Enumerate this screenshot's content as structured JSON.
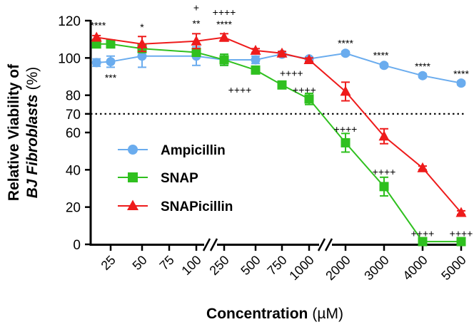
{
  "chart_data": {
    "type": "line",
    "title": "",
    "ylabel_line1": "Relative Viability of",
    "ylabel_italic": "BJ Fibroblasts",
    "ylabel_unit": "(%)",
    "xlabel": "Concentration",
    "xlabel_unit": "(µM)",
    "ylim": [
      0,
      120
    ],
    "yticks": [
      0,
      20,
      40,
      60,
      70,
      80,
      100,
      120
    ],
    "reference_line": 70,
    "categories": [
      "25",
      "50",
      "75",
      "100",
      "250",
      "500",
      "750",
      "1000",
      "2000",
      "3000",
      "4000",
      "5000"
    ],
    "series": [
      {
        "name": "Ampicillin",
        "color": "#6aacee",
        "marker": "circle",
        "points": [
          {
            "cat": "25",
            "offset": -0.45,
            "y": 97.5,
            "err": 2
          },
          {
            "cat": "25",
            "offset": 0,
            "y": 98,
            "err": 3
          },
          {
            "cat": "50",
            "offset": 0,
            "y": 101,
            "err": 6
          },
          {
            "cat": "100",
            "offset": 0,
            "y": 101,
            "err": 5
          },
          {
            "cat": "250",
            "offset": 0,
            "y": 99,
            "err": 3
          },
          {
            "cat": "500",
            "offset": 0,
            "y": 99,
            "err": 2
          },
          {
            "cat": "750",
            "offset": 0,
            "y": 102,
            "err": 1
          },
          {
            "cat": "1000",
            "offset": 0,
            "y": 99.5,
            "err": 1
          },
          {
            "cat": "2000",
            "offset": 0,
            "y": 102.5,
            "err": 1
          },
          {
            "cat": "3000",
            "offset": 0,
            "y": 96,
            "err": 1
          },
          {
            "cat": "4000",
            "offset": 0,
            "y": 90.5,
            "err": 1
          },
          {
            "cat": "5000",
            "offset": 0,
            "y": 86.5,
            "err": 1
          }
        ]
      },
      {
        "name": "SNAP",
        "color": "#2fc01f",
        "marker": "square",
        "points": [
          {
            "cat": "25",
            "offset": -0.45,
            "y": 107.5,
            "err": 1
          },
          {
            "cat": "25",
            "offset": 0,
            "y": 107.5,
            "err": 1
          },
          {
            "cat": "50",
            "offset": 0,
            "y": 105,
            "err": 1
          },
          {
            "cat": "100",
            "offset": 0,
            "y": 103,
            "err": 2
          },
          {
            "cat": "250",
            "offset": 0,
            "y": 99,
            "err": 3
          },
          {
            "cat": "500",
            "offset": 0,
            "y": 93.5,
            "err": 1
          },
          {
            "cat": "750",
            "offset": 0,
            "y": 85.5,
            "err": 1
          },
          {
            "cat": "1000",
            "offset": 0,
            "y": 78,
            "err": 3
          },
          {
            "cat": "2000",
            "offset": 0,
            "y": 54.5,
            "err": 5
          },
          {
            "cat": "3000",
            "offset": 0,
            "y": 31,
            "err": 5
          },
          {
            "cat": "4000",
            "offset": 0,
            "y": 1.5,
            "err": 1
          },
          {
            "cat": "5000",
            "offset": 0,
            "y": 1.5,
            "err": 1
          }
        ]
      },
      {
        "name": "SNAPicillin",
        "color": "#ee1b1b",
        "marker": "triangle",
        "points": [
          {
            "cat": "25",
            "offset": -0.45,
            "y": 111,
            "err": 1
          },
          {
            "cat": "50",
            "offset": 0,
            "y": 107.5,
            "err": 4
          },
          {
            "cat": "100",
            "offset": 0,
            "y": 109,
            "err": 4
          },
          {
            "cat": "250",
            "offset": 0,
            "y": 111,
            "err": 2
          },
          {
            "cat": "500",
            "offset": 0,
            "y": 104,
            "err": 1
          },
          {
            "cat": "750",
            "offset": 0,
            "y": 102.5,
            "err": 1
          },
          {
            "cat": "1000",
            "offset": 0,
            "y": 99,
            "err": 1
          },
          {
            "cat": "2000",
            "offset": 0,
            "y": 82,
            "err": 5
          },
          {
            "cat": "3000",
            "offset": 0,
            "y": 58,
            "err": 4
          },
          {
            "cat": "4000",
            "offset": 0,
            "y": 41,
            "err": 1
          },
          {
            "cat": "5000",
            "offset": 0,
            "y": 17,
            "err": 1
          }
        ]
      }
    ],
    "legend": [
      "Ampicillin",
      "SNAP",
      "SNAPicillin"
    ],
    "annotations": [
      {
        "text": "****",
        "cat": "25",
        "offset": -0.4,
        "y": 117.5
      },
      {
        "text": "***",
        "cat": "25",
        "offset": 0,
        "y": 89.5
      },
      {
        "text": "*",
        "cat": "50",
        "offset": 0,
        "y": 116.5
      },
      {
        "text": "+",
        "cat": "100",
        "offset": 0,
        "y": 127
      },
      {
        "text": "**",
        "cat": "100",
        "offset": 0,
        "y": 118.5
      },
      {
        "text": "++++",
        "cat": "250",
        "offset": 0,
        "y": 124.5
      },
      {
        "text": "****",
        "cat": "250",
        "offset": 0,
        "y": 118
      },
      {
        "text": "++++",
        "cat": "500",
        "offset": -0.5,
        "y": 83
      },
      {
        "text": "++++",
        "cat": "750",
        "offset": 0.3,
        "y": 92
      },
      {
        "text": "++++",
        "cat": "1000",
        "offset": -0.15,
        "y": 83
      },
      {
        "text": "****",
        "cat": "2000",
        "offset": 0,
        "y": 108
      },
      {
        "text": "++++",
        "cat": "2000",
        "offset": 0,
        "y": 62
      },
      {
        "text": "****",
        "cat": "3000",
        "offset": -0.1,
        "y": 101.5
      },
      {
        "text": "++++",
        "cat": "3000",
        "offset": 0,
        "y": 39
      },
      {
        "text": "****",
        "cat": "4000",
        "offset": 0,
        "y": 95.5
      },
      {
        "text": "++++",
        "cat": "4000",
        "offset": 0,
        "y": 6
      },
      {
        "text": "****",
        "cat": "5000",
        "offset": 0,
        "y": 91.5
      },
      {
        "text": "++++",
        "cat": "5000",
        "offset": 0,
        "y": 6
      }
    ]
  }
}
